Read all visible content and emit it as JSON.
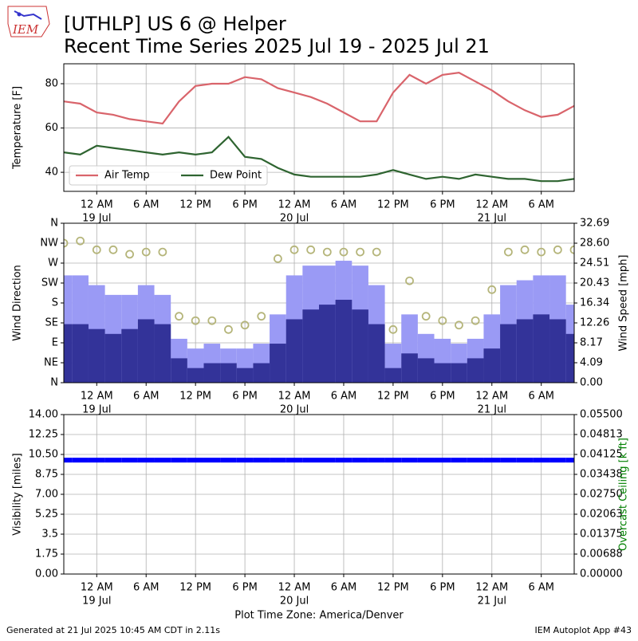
{
  "page": {
    "title": "[UTHLP] US 6 @ Helper",
    "subtitle": "Recent Time Series 2025 Jul 19 - 2025 Jul 21",
    "logo_text": "IEM",
    "x_label": "Plot Time Zone: America/Denver",
    "footer_left": "Generated at 21 Jul 2025 10:45 AM CDT in 2.11s",
    "footer_right": "IEM Autoplot App #43"
  },
  "chart_data": [
    {
      "type": "line",
      "ylabel": "Temperature [F]",
      "ylim": [
        31.4,
        89
      ],
      "yticks": [
        40,
        60,
        80
      ],
      "grid": true,
      "legend": "lower left",
      "xlim": [
        "2025-07-18T20:00",
        "2025-07-21T10:00"
      ],
      "xticks": [
        {
          "value": "2025-07-19T00:00",
          "label": "12 AM"
        },
        {
          "value": "2025-07-19T06:00",
          "label": "6 AM"
        },
        {
          "value": "2025-07-19T12:00",
          "label": "12 PM"
        },
        {
          "value": "2025-07-19T18:00",
          "label": "6 PM"
        },
        {
          "value": "2025-07-20T00:00",
          "label": "12 AM"
        },
        {
          "value": "2025-07-20T06:00",
          "label": "6 AM"
        },
        {
          "value": "2025-07-20T12:00",
          "label": "12 PM"
        },
        {
          "value": "2025-07-20T18:00",
          "label": "6 PM"
        },
        {
          "value": "2025-07-21T00:00",
          "label": "12 AM"
        },
        {
          "value": "2025-07-21T06:00",
          "label": "6 AM"
        }
      ],
      "date_ticks": [
        {
          "value": "2025-07-19T00:00",
          "label": "19 Jul"
        },
        {
          "value": "2025-07-20T00:00",
          "label": "20 Jul"
        },
        {
          "value": "2025-07-21T00:00",
          "label": "21 Jul"
        }
      ],
      "x": [
        "2025-07-18T20:00",
        "2025-07-18T22:00",
        "2025-07-19T00:00",
        "2025-07-19T02:00",
        "2025-07-19T04:00",
        "2025-07-19T06:00",
        "2025-07-19T08:00",
        "2025-07-19T10:00",
        "2025-07-19T12:00",
        "2025-07-19T14:00",
        "2025-07-19T16:00",
        "2025-07-19T18:00",
        "2025-07-19T20:00",
        "2025-07-19T22:00",
        "2025-07-20T00:00",
        "2025-07-20T02:00",
        "2025-07-20T04:00",
        "2025-07-20T06:00",
        "2025-07-20T08:00",
        "2025-07-20T10:00",
        "2025-07-20T12:00",
        "2025-07-20T14:00",
        "2025-07-20T16:00",
        "2025-07-20T18:00",
        "2025-07-20T20:00",
        "2025-07-20T22:00",
        "2025-07-21T00:00",
        "2025-07-21T02:00",
        "2025-07-21T04:00",
        "2025-07-21T06:00",
        "2025-07-21T08:00",
        "2025-07-21T10:00"
      ],
      "series": [
        {
          "name": "Air Temp",
          "color": "#d9646b",
          "type": "line",
          "values": [
            72,
            71,
            67,
            66,
            64,
            63,
            62,
            72,
            79,
            80,
            80,
            83,
            82,
            78,
            76,
            74,
            71,
            67,
            63,
            63,
            76,
            84,
            80,
            84,
            85,
            81,
            77,
            72,
            68,
            65,
            66,
            70
          ]
        },
        {
          "name": "Dew Point",
          "color": "#2e6430",
          "type": "line",
          "values": [
            49,
            48,
            52,
            51,
            50,
            49,
            48,
            49,
            48,
            49,
            56,
            47,
            46,
            42,
            39,
            38,
            38,
            38,
            38,
            39,
            41,
            39,
            37,
            38,
            37,
            39,
            38,
            37,
            37,
            36,
            36,
            37
          ]
        }
      ]
    },
    {
      "type": "bar",
      "ylabel": "Wind Direction",
      "y2label": "Wind Speed [mph]",
      "grid": true,
      "ylim": [
        0,
        360
      ],
      "yticks": [
        {
          "value": 0,
          "label": "N"
        },
        {
          "value": 45,
          "label": "NE"
        },
        {
          "value": 90,
          "label": "E"
        },
        {
          "value": 135,
          "label": "SE"
        },
        {
          "value": 180,
          "label": "S"
        },
        {
          "value": 225,
          "label": "SW"
        },
        {
          "value": 270,
          "label": "W"
        },
        {
          "value": 315,
          "label": "NW"
        },
        {
          "value": 360,
          "label": "N"
        }
      ],
      "y2lim": [
        0,
        32.69
      ],
      "y2ticks": [
        {
          "value": 0,
          "label": "0.00"
        },
        4.09,
        8.17,
        12.26,
        16.34,
        20.43,
        24.51,
        {
          "value": 28.6,
          "label": "28.60"
        },
        32.69
      ],
      "xlim": [
        "2025-07-18T20:00",
        "2025-07-21T10:00"
      ],
      "xticks": [
        {
          "value": "2025-07-19T00:00",
          "label": "12 AM"
        },
        {
          "value": "2025-07-19T06:00",
          "label": "6 AM"
        },
        {
          "value": "2025-07-19T12:00",
          "label": "12 PM"
        },
        {
          "value": "2025-07-19T18:00",
          "label": "6 PM"
        },
        {
          "value": "2025-07-20T00:00",
          "label": "12 AM"
        },
        {
          "value": "2025-07-20T06:00",
          "label": "6 AM"
        },
        {
          "value": "2025-07-20T12:00",
          "label": "12 PM"
        },
        {
          "value": "2025-07-20T18:00",
          "label": "6 PM"
        },
        {
          "value": "2025-07-21T00:00",
          "label": "12 AM"
        },
        {
          "value": "2025-07-21T06:00",
          "label": "6 AM"
        }
      ],
      "date_ticks": [
        {
          "value": "2025-07-19T00:00",
          "label": "19 Jul"
        },
        {
          "value": "2025-07-20T00:00",
          "label": "20 Jul"
        },
        {
          "value": "2025-07-21T00:00",
          "label": "21 Jul"
        }
      ],
      "x": [
        "2025-07-18T20:00",
        "2025-07-18T22:00",
        "2025-07-19T00:00",
        "2025-07-19T02:00",
        "2025-07-19T04:00",
        "2025-07-19T06:00",
        "2025-07-19T08:00",
        "2025-07-19T10:00",
        "2025-07-19T12:00",
        "2025-07-19T14:00",
        "2025-07-19T16:00",
        "2025-07-19T18:00",
        "2025-07-19T20:00",
        "2025-07-19T22:00",
        "2025-07-20T00:00",
        "2025-07-20T02:00",
        "2025-07-20T04:00",
        "2025-07-20T06:00",
        "2025-07-20T08:00",
        "2025-07-20T10:00",
        "2025-07-20T12:00",
        "2025-07-20T14:00",
        "2025-07-20T16:00",
        "2025-07-20T18:00",
        "2025-07-20T20:00",
        "2025-07-20T22:00",
        "2025-07-21T00:00",
        "2025-07-21T02:00",
        "2025-07-21T04:00",
        "2025-07-21T06:00",
        "2025-07-21T08:00",
        "2025-07-21T10:00"
      ],
      "series": [
        {
          "color": "#9a9af5",
          "type": "bar",
          "axis": "y2",
          "values": [
            22,
            22,
            20,
            18,
            18,
            20,
            18,
            9,
            7,
            8,
            7,
            7,
            8,
            14,
            22,
            24,
            24,
            25,
            24,
            20,
            8,
            14,
            10,
            9,
            8,
            9,
            14,
            20,
            21,
            22,
            22,
            16
          ]
        },
        {
          "color": "#333399",
          "type": "bar",
          "axis": "y2",
          "values": [
            12,
            12,
            11,
            10,
            11,
            13,
            12,
            5,
            3,
            4,
            4,
            3,
            4,
            8,
            13,
            15,
            16,
            17,
            15,
            12,
            3,
            6,
            5,
            4,
            4,
            5,
            7,
            12,
            13,
            14,
            13,
            10
          ]
        },
        {
          "color": "#b5b57a",
          "type": "scatter",
          "values": [
            315,
            320,
            300,
            300,
            290,
            295,
            295,
            150,
            140,
            140,
            120,
            130,
            150,
            280,
            300,
            300,
            295,
            295,
            295,
            295,
            120,
            230,
            150,
            140,
            130,
            140,
            210,
            295,
            300,
            295,
            300,
            300
          ]
        }
      ]
    },
    {
      "type": "scatter",
      "ylabel": "Visibility [miles]",
      "y2label": "Overcast Ceiling [k ft]",
      "grid": true,
      "ylim": [
        0,
        14
      ],
      "yticks": [
        {
          "value": 0,
          "label": "0.00"
        },
        1.75,
        3.5,
        5.25,
        {
          "value": 7,
          "label": "7.00"
        },
        8.75,
        {
          "value": 10.5,
          "label": "10.50"
        },
        12.25,
        {
          "value": 14,
          "label": "14.00"
        }
      ],
      "y2lim": [
        0,
        0.055
      ],
      "y2ticks": [
        {
          "value": 0,
          "label": "0.00000"
        },
        {
          "value": 0.00688,
          "label": "0.00688"
        },
        {
          "value": 0.01375,
          "label": "0.01375"
        },
        {
          "value": 0.02063,
          "label": "0.02063"
        },
        {
          "value": 0.0275,
          "label": "0.02750"
        },
        {
          "value": 0.03438,
          "label": "0.03438"
        },
        {
          "value": 0.04125,
          "label": "0.04125"
        },
        {
          "value": 0.04813,
          "label": "0.04813"
        },
        {
          "value": 0.055,
          "label": "0.05500"
        }
      ],
      "xlim": [
        "2025-07-18T20:00",
        "2025-07-21T10:00"
      ],
      "xticks": [
        {
          "value": "2025-07-19T00:00",
          "label": "12 AM"
        },
        {
          "value": "2025-07-19T06:00",
          "label": "6 AM"
        },
        {
          "value": "2025-07-19T12:00",
          "label": "12 PM"
        },
        {
          "value": "2025-07-19T18:00",
          "label": "6 PM"
        },
        {
          "value": "2025-07-20T00:00",
          "label": "12 AM"
        },
        {
          "value": "2025-07-20T06:00",
          "label": "6 AM"
        },
        {
          "value": "2025-07-20T12:00",
          "label": "12 PM"
        },
        {
          "value": "2025-07-20T18:00",
          "label": "6 PM"
        },
        {
          "value": "2025-07-21T00:00",
          "label": "12 AM"
        },
        {
          "value": "2025-07-21T06:00",
          "label": "6 AM"
        }
      ],
      "date_ticks": [
        {
          "value": "2025-07-19T00:00",
          "label": "19 Jul"
        },
        {
          "value": "2025-07-20T00:00",
          "label": "20 Jul"
        },
        {
          "value": "2025-07-21T00:00",
          "label": "21 Jul"
        }
      ],
      "x": [
        "2025-07-18T20:00",
        "2025-07-18T22:00",
        "2025-07-19T00:00",
        "2025-07-19T02:00",
        "2025-07-19T04:00",
        "2025-07-19T06:00",
        "2025-07-19T08:00",
        "2025-07-19T10:00",
        "2025-07-19T12:00",
        "2025-07-19T14:00",
        "2025-07-19T16:00",
        "2025-07-19T18:00",
        "2025-07-19T20:00",
        "2025-07-19T22:00",
        "2025-07-20T00:00",
        "2025-07-20T02:00",
        "2025-07-20T04:00",
        "2025-07-20T06:00",
        "2025-07-20T08:00",
        "2025-07-20T10:00",
        "2025-07-20T12:00",
        "2025-07-20T14:00",
        "2025-07-20T16:00",
        "2025-07-20T18:00",
        "2025-07-20T20:00",
        "2025-07-20T22:00",
        "2025-07-21T00:00",
        "2025-07-21T02:00",
        "2025-07-21T04:00",
        "2025-07-21T06:00",
        "2025-07-21T08:00",
        "2025-07-21T10:00"
      ],
      "series": [
        {
          "color": "#0000ff",
          "type": "scatter",
          "values": [
            10,
            10,
            10,
            10,
            10,
            10,
            10,
            10,
            10,
            10,
            10,
            10,
            10,
            10,
            10,
            10,
            10,
            10,
            10,
            10,
            10,
            10,
            10,
            10,
            10,
            10,
            10,
            10,
            10,
            10,
            10,
            10
          ]
        }
      ]
    }
  ]
}
